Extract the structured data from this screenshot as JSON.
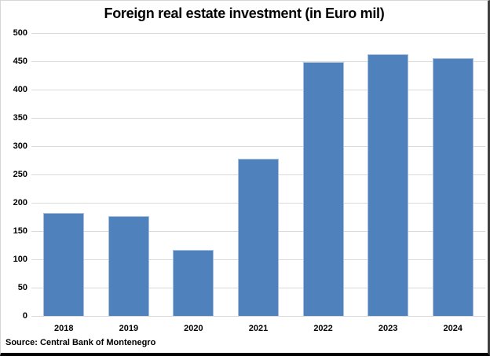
{
  "title": "Foreign real estate investment (in Euro mil)",
  "source_note": "Source: Central Bank of Montenegro",
  "colors": {
    "bar_fill": "#4f81bd",
    "bar_border": "#a8c0df",
    "gridline": "#d9d9d9",
    "text": "#000000",
    "background": "#ffffff"
  },
  "chart_data": {
    "type": "bar",
    "title": "Foreign real estate investment (in Euro mil)",
    "categories": [
      "2018",
      "2019",
      "2020",
      "2021",
      "2022",
      "2023",
      "2024"
    ],
    "values": [
      182,
      177,
      116,
      278,
      448,
      463,
      456
    ],
    "xlabel": "",
    "ylabel": "",
    "ylim": [
      0,
      500
    ],
    "yticks": [
      0,
      50,
      100,
      150,
      200,
      250,
      300,
      350,
      400,
      450,
      500
    ],
    "grid": true,
    "legend": false,
    "source": "Source: Central Bank of Montenegro"
  }
}
